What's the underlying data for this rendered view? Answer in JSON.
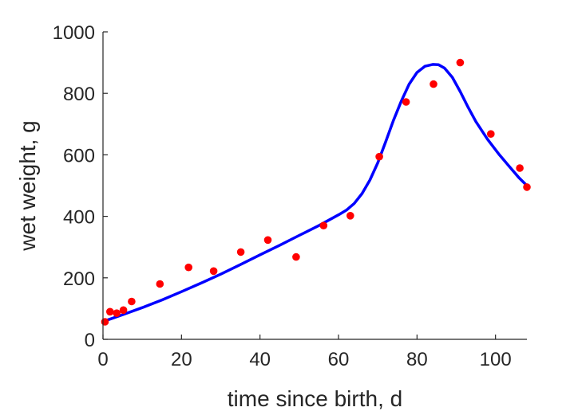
{
  "chart_data": {
    "type": "scatter",
    "title": "",
    "xlabel": "time since birth, d",
    "ylabel": "wet weight, g",
    "xlim": [
      0,
      108
    ],
    "ylim": [
      0,
      1000
    ],
    "xticks": [
      0,
      20,
      40,
      60,
      80,
      100
    ],
    "yticks": [
      0,
      200,
      400,
      600,
      800,
      1000
    ],
    "grid": false,
    "legend": "none",
    "series": [
      {
        "kind": "points",
        "color": "#ff0000",
        "x": [
          0.5,
          1.8,
          3.5,
          5.2,
          7.3,
          14.5,
          21.8,
          28.2,
          35.1,
          42.0,
          49.2,
          56.2,
          63.0,
          70.4,
          77.2,
          84.2,
          91.0,
          98.8,
          106.2,
          108.0
        ],
        "y": [
          57,
          90,
          85,
          95,
          123,
          180,
          234,
          222,
          284,
          323,
          268,
          370,
          402,
          594,
          772,
          830,
          900,
          668,
          557,
          495
        ]
      },
      {
        "kind": "line",
        "color": "#0000ff",
        "x": [
          0.5,
          5,
          10,
          15,
          20,
          25,
          30,
          35,
          40,
          45,
          50,
          55,
          60,
          62,
          64,
          66,
          68,
          70,
          72,
          74,
          76,
          78,
          80,
          82,
          84,
          85.5,
          87,
          89,
          91,
          93,
          95,
          98,
          101,
          104,
          106,
          108
        ],
        "y": [
          60,
          80,
          103,
          128,
          155,
          183,
          212,
          243,
          275,
          306,
          338,
          370,
          405,
          420,
          442,
          474,
          518,
          574,
          642,
          712,
          775,
          830,
          868,
          888,
          894,
          893,
          882,
          852,
          806,
          755,
          708,
          650,
          600,
          555,
          525,
          500
        ]
      }
    ]
  }
}
